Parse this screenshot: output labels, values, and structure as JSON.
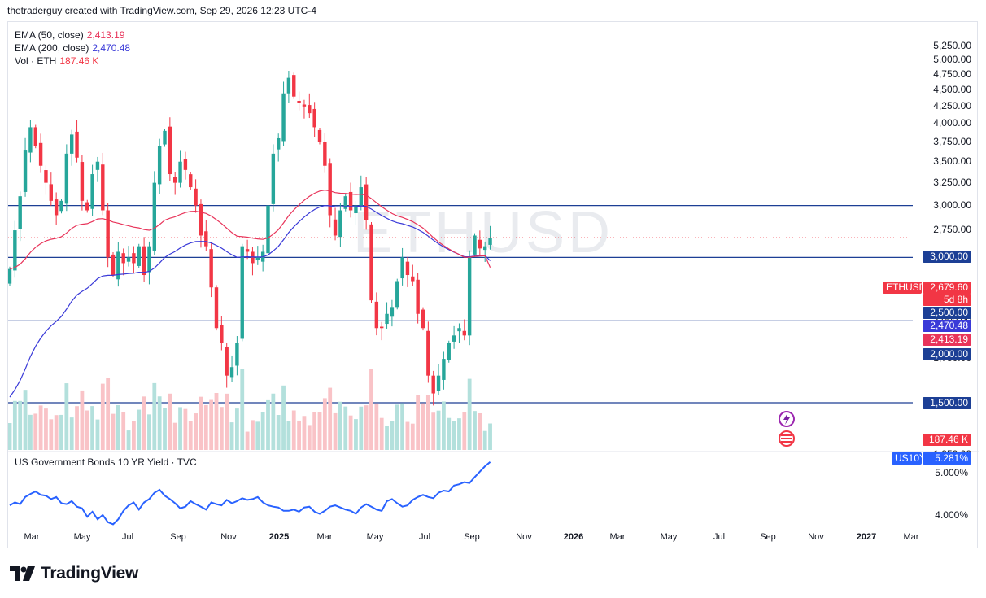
{
  "header": {
    "text": "thetraderguy created with TradingView.com, Sep 29, 2026 12:23 UTC-4"
  },
  "watermark": "ETHUSD",
  "brand": {
    "name": "TradingView"
  },
  "legend": {
    "ema50": {
      "label": "EMA (50, close)",
      "value": "2,413.19",
      "color": "#e8345a"
    },
    "ema200": {
      "label": "EMA (200, close)",
      "value": "2,470.48",
      "color": "#3a3ad8"
    },
    "vol": {
      "label": "Vol · ETH",
      "value": "187.46 K",
      "color": "#f23645"
    }
  },
  "lower_pane": {
    "label": "US Government Bonds 10 YR Yield · TVC"
  },
  "badges": {
    "symbol": "ETHUSD",
    "price": "2,679.60",
    "countdown": "5d 8h",
    "level_3000": "3,000.00",
    "level_2500": "2,500.00",
    "ema200": "2,470.48",
    "ema50": "2,413.19",
    "level_2000": "2,000.00",
    "level_1500": "1,500.00",
    "volume": "187.46 K",
    "us10y_symbol": "US10Y",
    "us10y_value": "5.281%"
  },
  "colors": {
    "up": "#26a69a",
    "down": "#f23645",
    "ema50": "#e8345a",
    "ema200": "#3a3ad8",
    "hline": "#1c3f95",
    "yield": "#2962ff"
  },
  "chart_data": [
    {
      "type": "candlestick",
      "symbol": "ETHUSD",
      "interval": "weekly",
      "yaxis": {
        "ticks": [
          "5,250.00",
          "5,000.00",
          "4,750.00",
          "4,500.00",
          "4,250.00",
          "4,000.00",
          "3,750.00",
          "3,500.00",
          "3,250.00",
          "3,000.00",
          "2,750.00",
          "2,500.00",
          "2,250.00",
          "2,000.00",
          "1,750.00",
          "1,500.00",
          "1,250.00"
        ],
        "range": [
          1000,
          5400
        ],
        "scale": "log"
      },
      "xaxis": {
        "ticks": [
          "Mar",
          "May",
          "Jul",
          "Sep",
          "Nov",
          "2025",
          "Mar",
          "May",
          "Jul",
          "Sep",
          "Nov",
          "2026",
          "Mar",
          "May",
          "Jul",
          "Sep",
          "Nov",
          "2027",
          "Mar"
        ]
      },
      "horizontal_lines": [
        3000,
        2500,
        2000,
        1500
      ],
      "last_price": 2679.6,
      "ema50_last": 2413.19,
      "ema200_last": 2470.48,
      "close_path": [
        2400,
        2750,
        3100,
        3650,
        3950,
        3700,
        3450,
        3250,
        3050,
        2900,
        3050,
        3600,
        3850,
        3550,
        3050,
        2950,
        3350,
        3500,
        2950,
        2500,
        2350,
        2550,
        2450,
        2500,
        2450,
        2600,
        2350,
        2600,
        3250,
        3700,
        3900,
        3350,
        3250,
        3500,
        3400,
        3200,
        3000,
        2700,
        2600,
        2250,
        1950,
        1850,
        1650,
        1700,
        1850,
        2600,
        2550,
        2450,
        2500,
        2550,
        3000,
        3600,
        3800,
        4450,
        4700,
        4400,
        4300,
        4250,
        4150,
        3950,
        3750,
        3450,
        2900,
        2700,
        2950,
        3100,
        2950,
        3000,
        3200,
        2850,
        2150,
        1950,
        1950,
        2050,
        2100,
        2300,
        2500,
        2350,
        2300,
        2050,
        1950,
        1650,
        1550,
        1650,
        1750,
        1850,
        1900,
        1950,
        1900,
        2500,
        2700,
        2580,
        2600,
        2680
      ],
      "volume_last": "187.46 K"
    },
    {
      "type": "line",
      "symbol": "US10Y",
      "yaxis": {
        "ticks": [
          "5.000%",
          "4.000%"
        ],
        "range": [
          3.75,
          5.45
        ]
      },
      "values": [
        4.25,
        4.32,
        4.28,
        4.45,
        4.52,
        4.58,
        4.5,
        4.48,
        4.4,
        4.45,
        4.3,
        4.28,
        4.35,
        4.22,
        4.18,
        3.98,
        4.1,
        3.92,
        4.02,
        3.85,
        3.8,
        3.92,
        4.12,
        4.25,
        4.32,
        4.15,
        4.32,
        4.4,
        4.55,
        4.62,
        4.48,
        4.4,
        4.3,
        4.18,
        4.22,
        4.35,
        4.28,
        4.22,
        4.15,
        4.32,
        4.28,
        4.25,
        4.38,
        4.3,
        4.35,
        4.42,
        4.38,
        4.4,
        4.45,
        4.32,
        4.25,
        4.22,
        4.2,
        4.12,
        4.12,
        4.15,
        4.1,
        4.2,
        4.22,
        4.1,
        4.05,
        4.12,
        4.22,
        4.25,
        4.2,
        4.15,
        4.12,
        4.05,
        4.2,
        4.28,
        4.22,
        4.15,
        4.12,
        4.35,
        4.4,
        4.3,
        4.22,
        4.25,
        4.38,
        4.45,
        4.5,
        4.45,
        4.42,
        4.55,
        4.6,
        4.58,
        4.72,
        4.75,
        4.8,
        4.78,
        4.92,
        5.05,
        5.18,
        5.28
      ]
    }
  ]
}
